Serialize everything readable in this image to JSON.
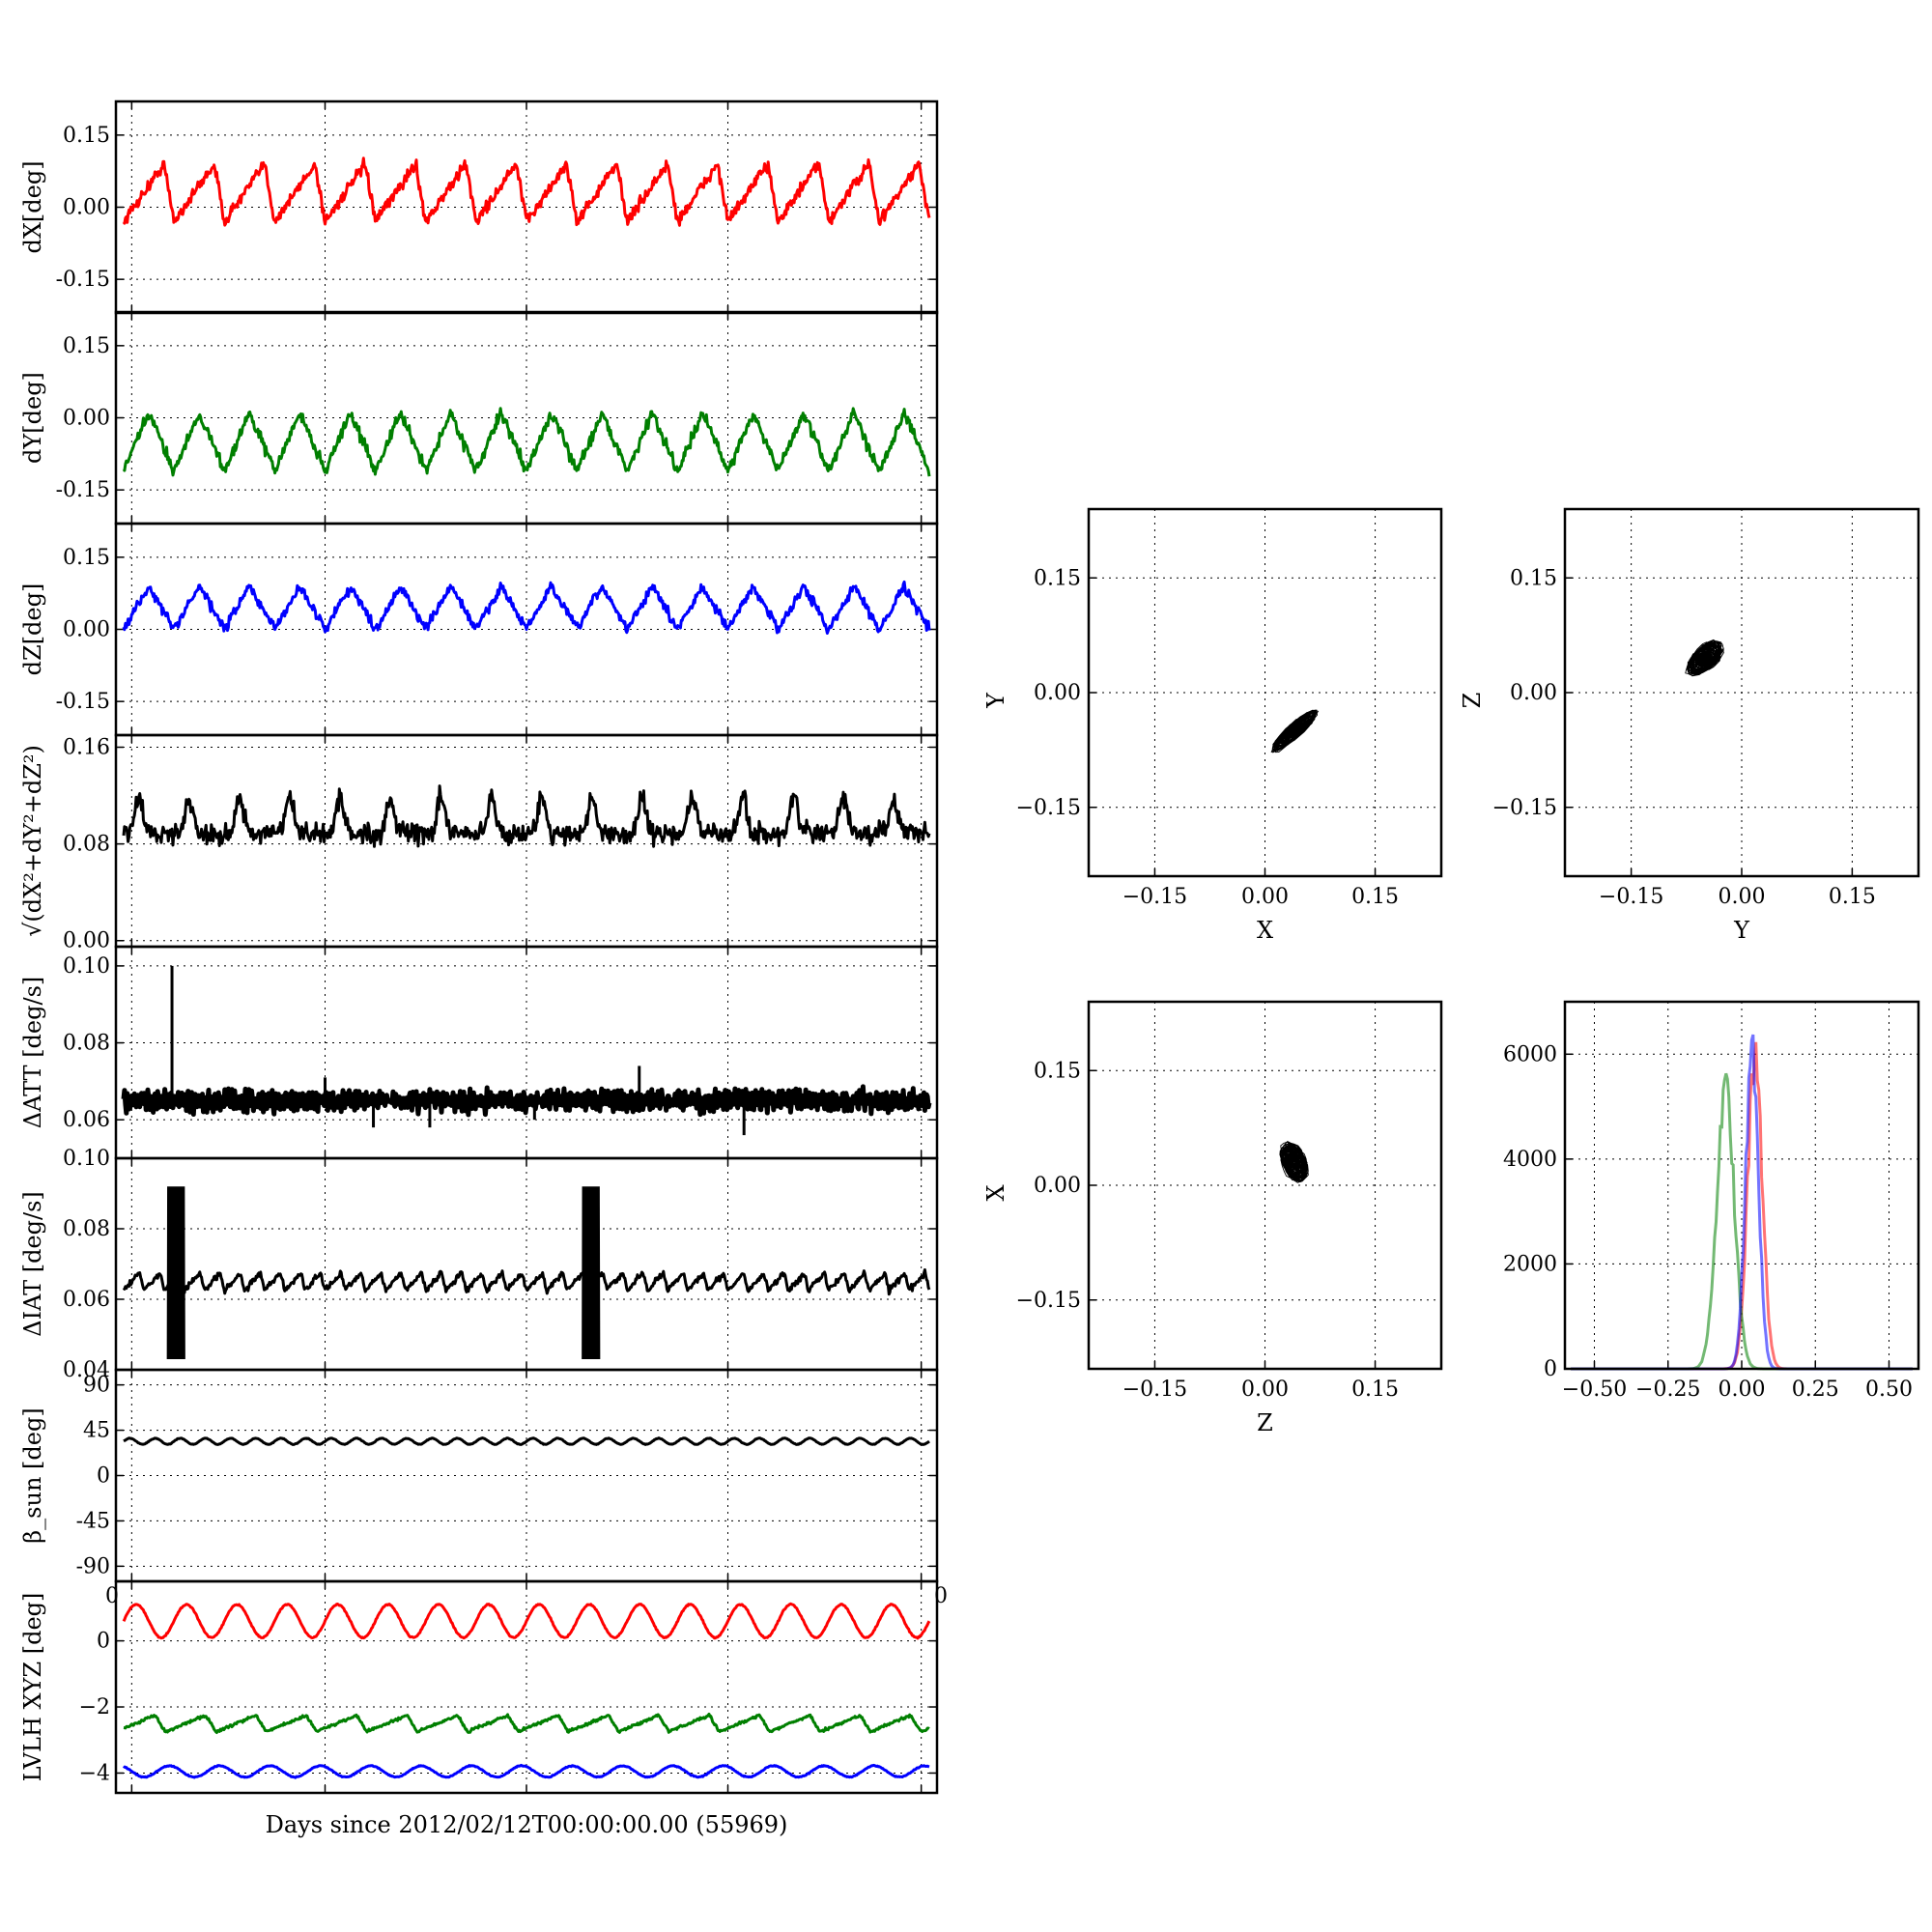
{
  "chart_data": [
    {
      "type": "line",
      "id": "dx",
      "ylabel": "dX[deg]",
      "ylim": [
        -0.22,
        0.22
      ],
      "yticks": [
        "0.15",
        "0.00",
        "-0.15"
      ],
      "ytick_values": [
        0.15,
        0.0,
        -0.15
      ],
      "series": [
        {
          "color": "#ff0000",
          "center": 0.03,
          "amplitude": 0.06,
          "cycles": 16,
          "shape": "sawtooth",
          "noise": 0.012
        }
      ]
    },
    {
      "type": "line",
      "id": "dy",
      "ylabel": "dY[deg]",
      "ylim": [
        -0.22,
        0.22
      ],
      "yticks": [
        "0.15",
        "0.00",
        "-0.15"
      ],
      "ytick_values": [
        0.15,
        0.0,
        -0.15
      ],
      "series": [
        {
          "color": "#007f00",
          "center": -0.05,
          "amplitude": 0.06,
          "cycles": 16,
          "shape": "triangle",
          "noise": 0.012
        }
      ]
    },
    {
      "type": "line",
      "id": "dz",
      "ylabel": "dZ[deg]",
      "ylim": [
        -0.22,
        0.22
      ],
      "yticks": [
        "0.15",
        "0.00",
        "-0.15"
      ],
      "ytick_values": [
        0.15,
        0.0,
        -0.15
      ],
      "series": [
        {
          "color": "#0000ff",
          "center": 0.045,
          "amplitude": 0.045,
          "cycles": 16,
          "shape": "triangle",
          "noise": 0.01
        }
      ]
    },
    {
      "type": "line",
      "id": "mag",
      "ylabel": "√(dX²+dY²+dZ²)",
      "ylim": [
        -0.005,
        0.17
      ],
      "yticks": [
        "0.16",
        "0.08",
        "0.00"
      ],
      "ytick_values": [
        0.16,
        0.08,
        0.0
      ],
      "series": [
        {
          "color": "#000000",
          "center": 0.092,
          "amplitude": 0.012,
          "cycles": 16,
          "shape": "spike",
          "noise": 0.008
        }
      ]
    },
    {
      "type": "line",
      "id": "datt",
      "ylabel": "ΔATT [deg/s]",
      "ylim": [
        0.05,
        0.105
      ],
      "yticks": [
        "0.10",
        "0.08",
        "0.06"
      ],
      "ytick_values": [
        0.1,
        0.08,
        0.06
      ],
      "series": [
        {
          "color": "#000000",
          "center": 0.065,
          "amplitude": 0.002,
          "cycles": 60,
          "shape": "band",
          "noise": 0.0015
        }
      ],
      "spikes": [
        {
          "x": 0.06,
          "y": 0.1
        },
        {
          "x": 0.25,
          "y": 0.071
        },
        {
          "x": 0.31,
          "y": 0.058
        },
        {
          "x": 0.38,
          "y": 0.058
        },
        {
          "x": 0.51,
          "y": 0.06
        },
        {
          "x": 0.64,
          "y": 0.074
        },
        {
          "x": 0.77,
          "y": 0.056
        }
      ]
    },
    {
      "type": "line",
      "id": "diat",
      "ylabel": "ΔIAT [deg/s]",
      "ylim": [
        0.04,
        0.1
      ],
      "yticks": [
        "0.10",
        "0.08",
        "0.06",
        "0.04"
      ],
      "ytick_values": [
        0.1,
        0.08,
        0.06,
        0.04
      ],
      "series": [
        {
          "color": "#000000",
          "center": 0.065,
          "amplitude": 0.0025,
          "cycles": 40,
          "shape": "sawtooth",
          "noise": 0.0008
        }
      ],
      "bursts": [
        {
          "x0": 0.055,
          "x1": 0.075,
          "ymin": 0.043,
          "ymax": 0.092
        },
        {
          "x0": 0.57,
          "x1": 0.59,
          "ymin": 0.043,
          "ymax": 0.092
        }
      ]
    },
    {
      "type": "line",
      "id": "beta",
      "ylabel": "β_sun [deg]",
      "ylim": [
        -105,
        105
      ],
      "yticks": [
        "90",
        "45",
        "0",
        "-45",
        "-90"
      ],
      "ytick_values": [
        90,
        45,
        0,
        -45,
        -90
      ],
      "series": [
        {
          "color": "#000000",
          "center": 34,
          "amplitude": 3,
          "cycles": 32,
          "shape": "sine",
          "noise": 0.3
        }
      ],
      "xtick_left": "0",
      "xtick_right": "0"
    },
    {
      "type": "line",
      "id": "lvlh",
      "ylabel": "LVLH XYZ [deg]",
      "ylim": [
        -4.6,
        1.8
      ],
      "yticks": [
        "0",
        "−2",
        "−4"
      ],
      "ytick_values": [
        0,
        -2,
        -4
      ],
      "series": [
        {
          "color": "#ff0000",
          "center": 0.6,
          "amplitude": 0.5,
          "cycles": 16,
          "shape": "sine",
          "noise": 0.02
        },
        {
          "color": "#007f00",
          "center": -2.5,
          "amplitude": 0.25,
          "cycles": 16,
          "shape": "sawtooth",
          "noise": 0.04
        },
        {
          "color": "#0000ff",
          "center": -3.95,
          "amplitude": 0.17,
          "cycles": 16,
          "shape": "sine",
          "noise": 0.015
        }
      ],
      "xlabel": "Days since 2012/02/12T00:00:00.00 (55969)"
    },
    {
      "type": "scatter",
      "id": "xy",
      "xlabel": "X",
      "ylabel": "Y",
      "xlim": [
        -0.24,
        0.24
      ],
      "ylim": [
        -0.24,
        0.24
      ],
      "ticks": [
        "−0.15",
        "0.00",
        "0.15"
      ],
      "tick_values": [
        -0.15,
        0.0,
        0.15
      ],
      "cloud": {
        "cx": 0.04,
        "cy": -0.05,
        "sx": 0.032,
        "sy": 0.028,
        "tilt": 0.6
      }
    },
    {
      "type": "scatter",
      "id": "yz",
      "xlabel": "Y",
      "ylabel": "Z",
      "xlim": [
        -0.24,
        0.24
      ],
      "ylim": [
        -0.24,
        0.24
      ],
      "ticks": [
        "−0.15",
        "0.00",
        "0.15"
      ],
      "tick_values": [
        -0.15,
        0.0,
        0.15
      ],
      "cloud": {
        "cx": -0.05,
        "cy": 0.045,
        "sx": 0.028,
        "sy": 0.025,
        "tilt": 0.3
      }
    },
    {
      "type": "scatter",
      "id": "zx",
      "xlabel": "Z",
      "ylabel": "X",
      "xlim": [
        -0.24,
        0.24
      ],
      "ylim": [
        -0.24,
        0.24
      ],
      "ticks": [
        "−0.15",
        "0.00",
        "0.15"
      ],
      "tick_values": [
        -0.15,
        0.0,
        0.15
      ],
      "cloud": {
        "cx": 0.04,
        "cy": 0.03,
        "sx": 0.022,
        "sy": 0.03,
        "tilt": -0.2
      }
    },
    {
      "type": "histogram",
      "id": "hist",
      "xlim": [
        -0.6,
        0.6
      ],
      "ylim": [
        0,
        7000
      ],
      "xticks": [
        "−0.50",
        "−0.25",
        "0.00",
        "0.25",
        "0.50"
      ],
      "xtick_values": [
        -0.5,
        -0.25,
        0.0,
        0.25,
        0.5
      ],
      "yticks": [
        "6000",
        "4000",
        "2000",
        "0"
      ],
      "ytick_values": [
        6000,
        4000,
        2000,
        0
      ],
      "series": [
        {
          "color": "#ff0000",
          "center": 0.045,
          "width": 0.025,
          "peak": 6300
        },
        {
          "color": "#007f00",
          "center": -0.055,
          "width": 0.03,
          "peak": 5800
        },
        {
          "color": "#0000ff",
          "center": 0.035,
          "width": 0.022,
          "peak": 6500
        }
      ]
    }
  ]
}
